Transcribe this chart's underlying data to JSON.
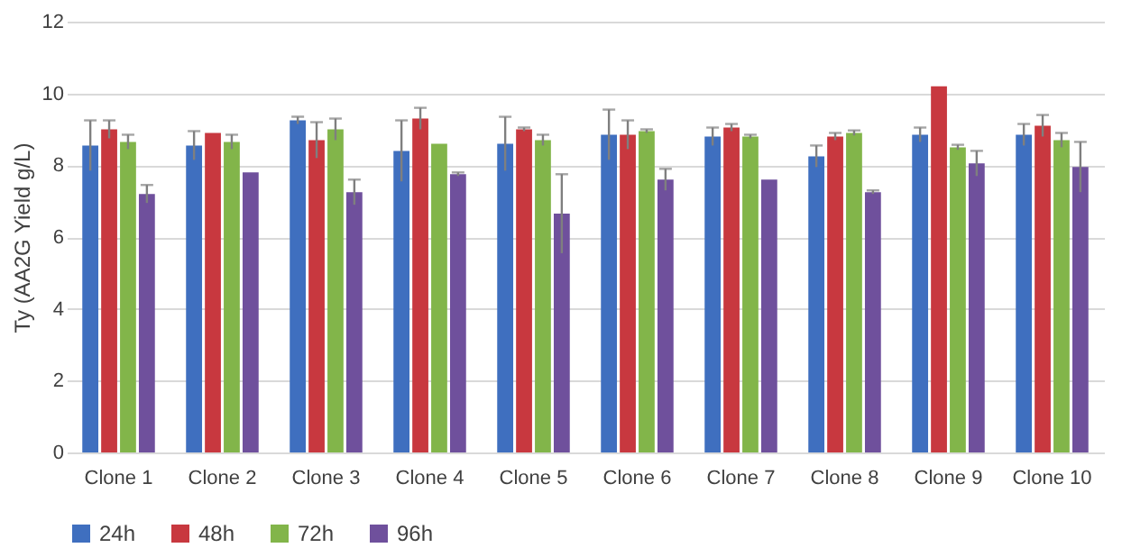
{
  "chart_data": {
    "type": "bar",
    "ylabel": "Ty (AA2G Yield g/L)",
    "categories": [
      "Clone 1",
      "Clone 2",
      "Clone 3",
      "Clone 4",
      "Clone 5",
      "Clone 6",
      "Clone 7",
      "Clone 8",
      "Clone 9",
      "Clone 10"
    ],
    "series": [
      {
        "name": "24h",
        "color": "#3f6fbf",
        "values": [
          8.55,
          8.55,
          9.25,
          8.4,
          8.6,
          8.85,
          8.8,
          8.25,
          8.85,
          8.85
        ],
        "errors": [
          0.7,
          0.4,
          0.1,
          0.85,
          0.75,
          0.7,
          0.25,
          0.3,
          0.2,
          0.3
        ]
      },
      {
        "name": "48h",
        "color": "#c8383f",
        "values": [
          9.0,
          8.9,
          8.7,
          9.3,
          9.0,
          8.85,
          9.05,
          8.8,
          10.2,
          9.1
        ],
        "errors": [
          0.25,
          null,
          0.5,
          0.3,
          0.05,
          0.4,
          0.1,
          0.1,
          null,
          0.3
        ]
      },
      {
        "name": "72h",
        "color": "#82b54a",
        "values": [
          8.65,
          8.65,
          9.0,
          8.6,
          8.7,
          8.95,
          8.8,
          8.9,
          8.5,
          8.7
        ],
        "errors": [
          0.2,
          0.2,
          0.3,
          null,
          0.15,
          0.05,
          0.05,
          0.07,
          0.07,
          0.2
        ]
      },
      {
        "name": "96h",
        "color": "#6f509c",
        "values": [
          7.2,
          7.8,
          7.25,
          7.75,
          6.65,
          7.6,
          7.6,
          7.25,
          8.05,
          7.95
        ],
        "errors": [
          0.25,
          null,
          0.35,
          0.05,
          1.1,
          0.3,
          null,
          0.05,
          0.35,
          0.7
        ]
      }
    ],
    "ylim": [
      0,
      12
    ],
    "yticks": [
      0,
      2,
      4,
      6,
      8,
      10,
      12
    ],
    "grid": "y",
    "legend": "bottom"
  }
}
